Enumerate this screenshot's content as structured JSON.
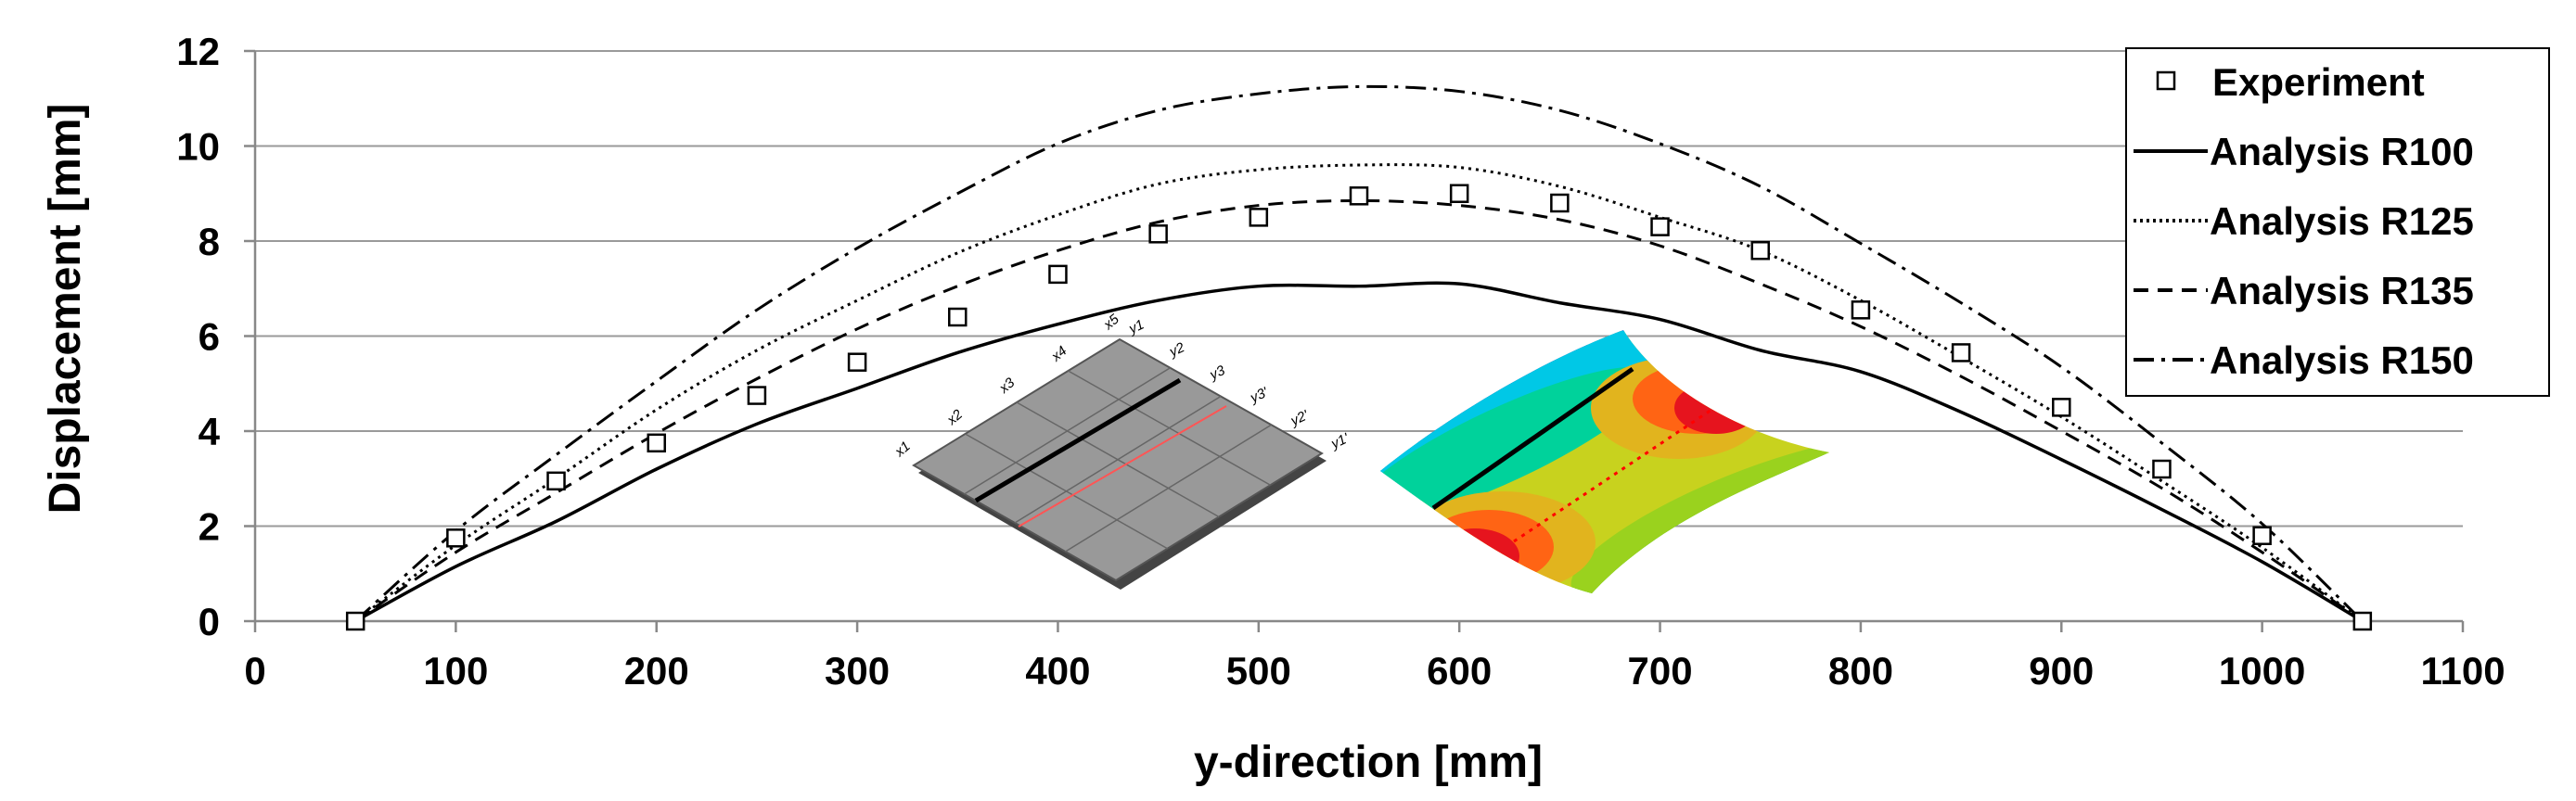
{
  "chart_data": {
    "type": "line",
    "xlabel": "y-direction [mm]",
    "ylabel": "Displacement [mm]",
    "xlim": [
      0,
      1100
    ],
    "ylim": [
      0,
      12
    ],
    "xticks": [
      0,
      100,
      200,
      300,
      400,
      500,
      600,
      700,
      800,
      900,
      1000,
      1100
    ],
    "yticks": [
      0,
      2,
      4,
      6,
      8,
      10,
      12
    ],
    "grid": "horizontal",
    "legend_position": "top-right",
    "series": [
      {
        "name": "Experiment",
        "style": "square-markers",
        "x": [
          50,
          100,
          150,
          200,
          250,
          300,
          350,
          400,
          450,
          500,
          550,
          600,
          650,
          700,
          750,
          800,
          850,
          900,
          950,
          1000,
          1050
        ],
        "y": [
          0,
          1.75,
          2.95,
          3.75,
          4.75,
          5.45,
          6.4,
          7.3,
          8.15,
          8.5,
          8.95,
          9.0,
          8.8,
          8.3,
          7.8,
          6.55,
          5.65,
          4.5,
          3.2,
          1.8,
          0
        ]
      },
      {
        "name": "Analysis R100",
        "style": "solid",
        "x": [
          50,
          100,
          150,
          200,
          250,
          300,
          350,
          400,
          450,
          500,
          550,
          600,
          650,
          700,
          750,
          800,
          850,
          900,
          950,
          1000,
          1050
        ],
        "y": [
          0,
          1.15,
          2.1,
          3.2,
          4.15,
          4.9,
          5.65,
          6.25,
          6.75,
          7.05,
          7.05,
          7.1,
          6.7,
          6.35,
          5.7,
          5.25,
          4.4,
          3.4,
          2.35,
          1.25,
          0
        ]
      },
      {
        "name": "Analysis R125",
        "style": "dotted",
        "x": [
          50,
          100,
          150,
          200,
          250,
          300,
          350,
          400,
          450,
          500,
          550,
          600,
          650,
          700,
          750,
          800,
          850,
          900,
          950,
          1000,
          1050
        ],
        "y": [
          0,
          1.6,
          3.0,
          4.45,
          5.7,
          6.75,
          7.75,
          8.55,
          9.2,
          9.5,
          9.6,
          9.55,
          9.15,
          8.5,
          7.8,
          6.75,
          5.55,
          4.3,
          2.95,
          1.55,
          0
        ]
      },
      {
        "name": "Analysis R135",
        "style": "dashed",
        "x": [
          50,
          100,
          150,
          200,
          250,
          300,
          350,
          400,
          450,
          500,
          550,
          600,
          650,
          700,
          750,
          800,
          850,
          900,
          950,
          1000,
          1050
        ],
        "y": [
          0,
          1.45,
          2.7,
          3.95,
          5.1,
          6.15,
          7.05,
          7.8,
          8.4,
          8.75,
          8.85,
          8.75,
          8.45,
          7.9,
          7.1,
          6.2,
          5.15,
          4.0,
          2.8,
          1.45,
          0
        ]
      },
      {
        "name": "Analysis R150",
        "style": "dash-dot",
        "x": [
          50,
          100,
          150,
          200,
          250,
          300,
          350,
          400,
          450,
          500,
          550,
          600,
          650,
          700,
          750,
          800,
          850,
          900,
          950,
          1000,
          1050
        ],
        "y": [
          0,
          1.9,
          3.5,
          5.05,
          6.55,
          7.85,
          9.0,
          10.05,
          10.75,
          11.1,
          11.25,
          11.15,
          10.75,
          10.05,
          9.15,
          7.95,
          6.7,
          5.35,
          3.75,
          2.05,
          0
        ]
      }
    ],
    "inset_plate_labels": {
      "x": [
        "x1",
        "x2",
        "x3",
        "x4",
        "x5"
      ],
      "y": [
        "y1",
        "y2",
        "y3",
        "y3'",
        "y2'",
        "y1'"
      ]
    }
  },
  "colors": {
    "plate_fill": "#999999",
    "plate_edge": "#555555",
    "section_line": "#000000",
    "section_dotted": "#ff0000",
    "contour": [
      "#1030c8",
      "#1e90ff",
      "#00c8e6",
      "#00d29b",
      "#20c020",
      "#9ad21e",
      "#c8d21e",
      "#e1b41e",
      "#ff6414",
      "#e6141e"
    ]
  }
}
